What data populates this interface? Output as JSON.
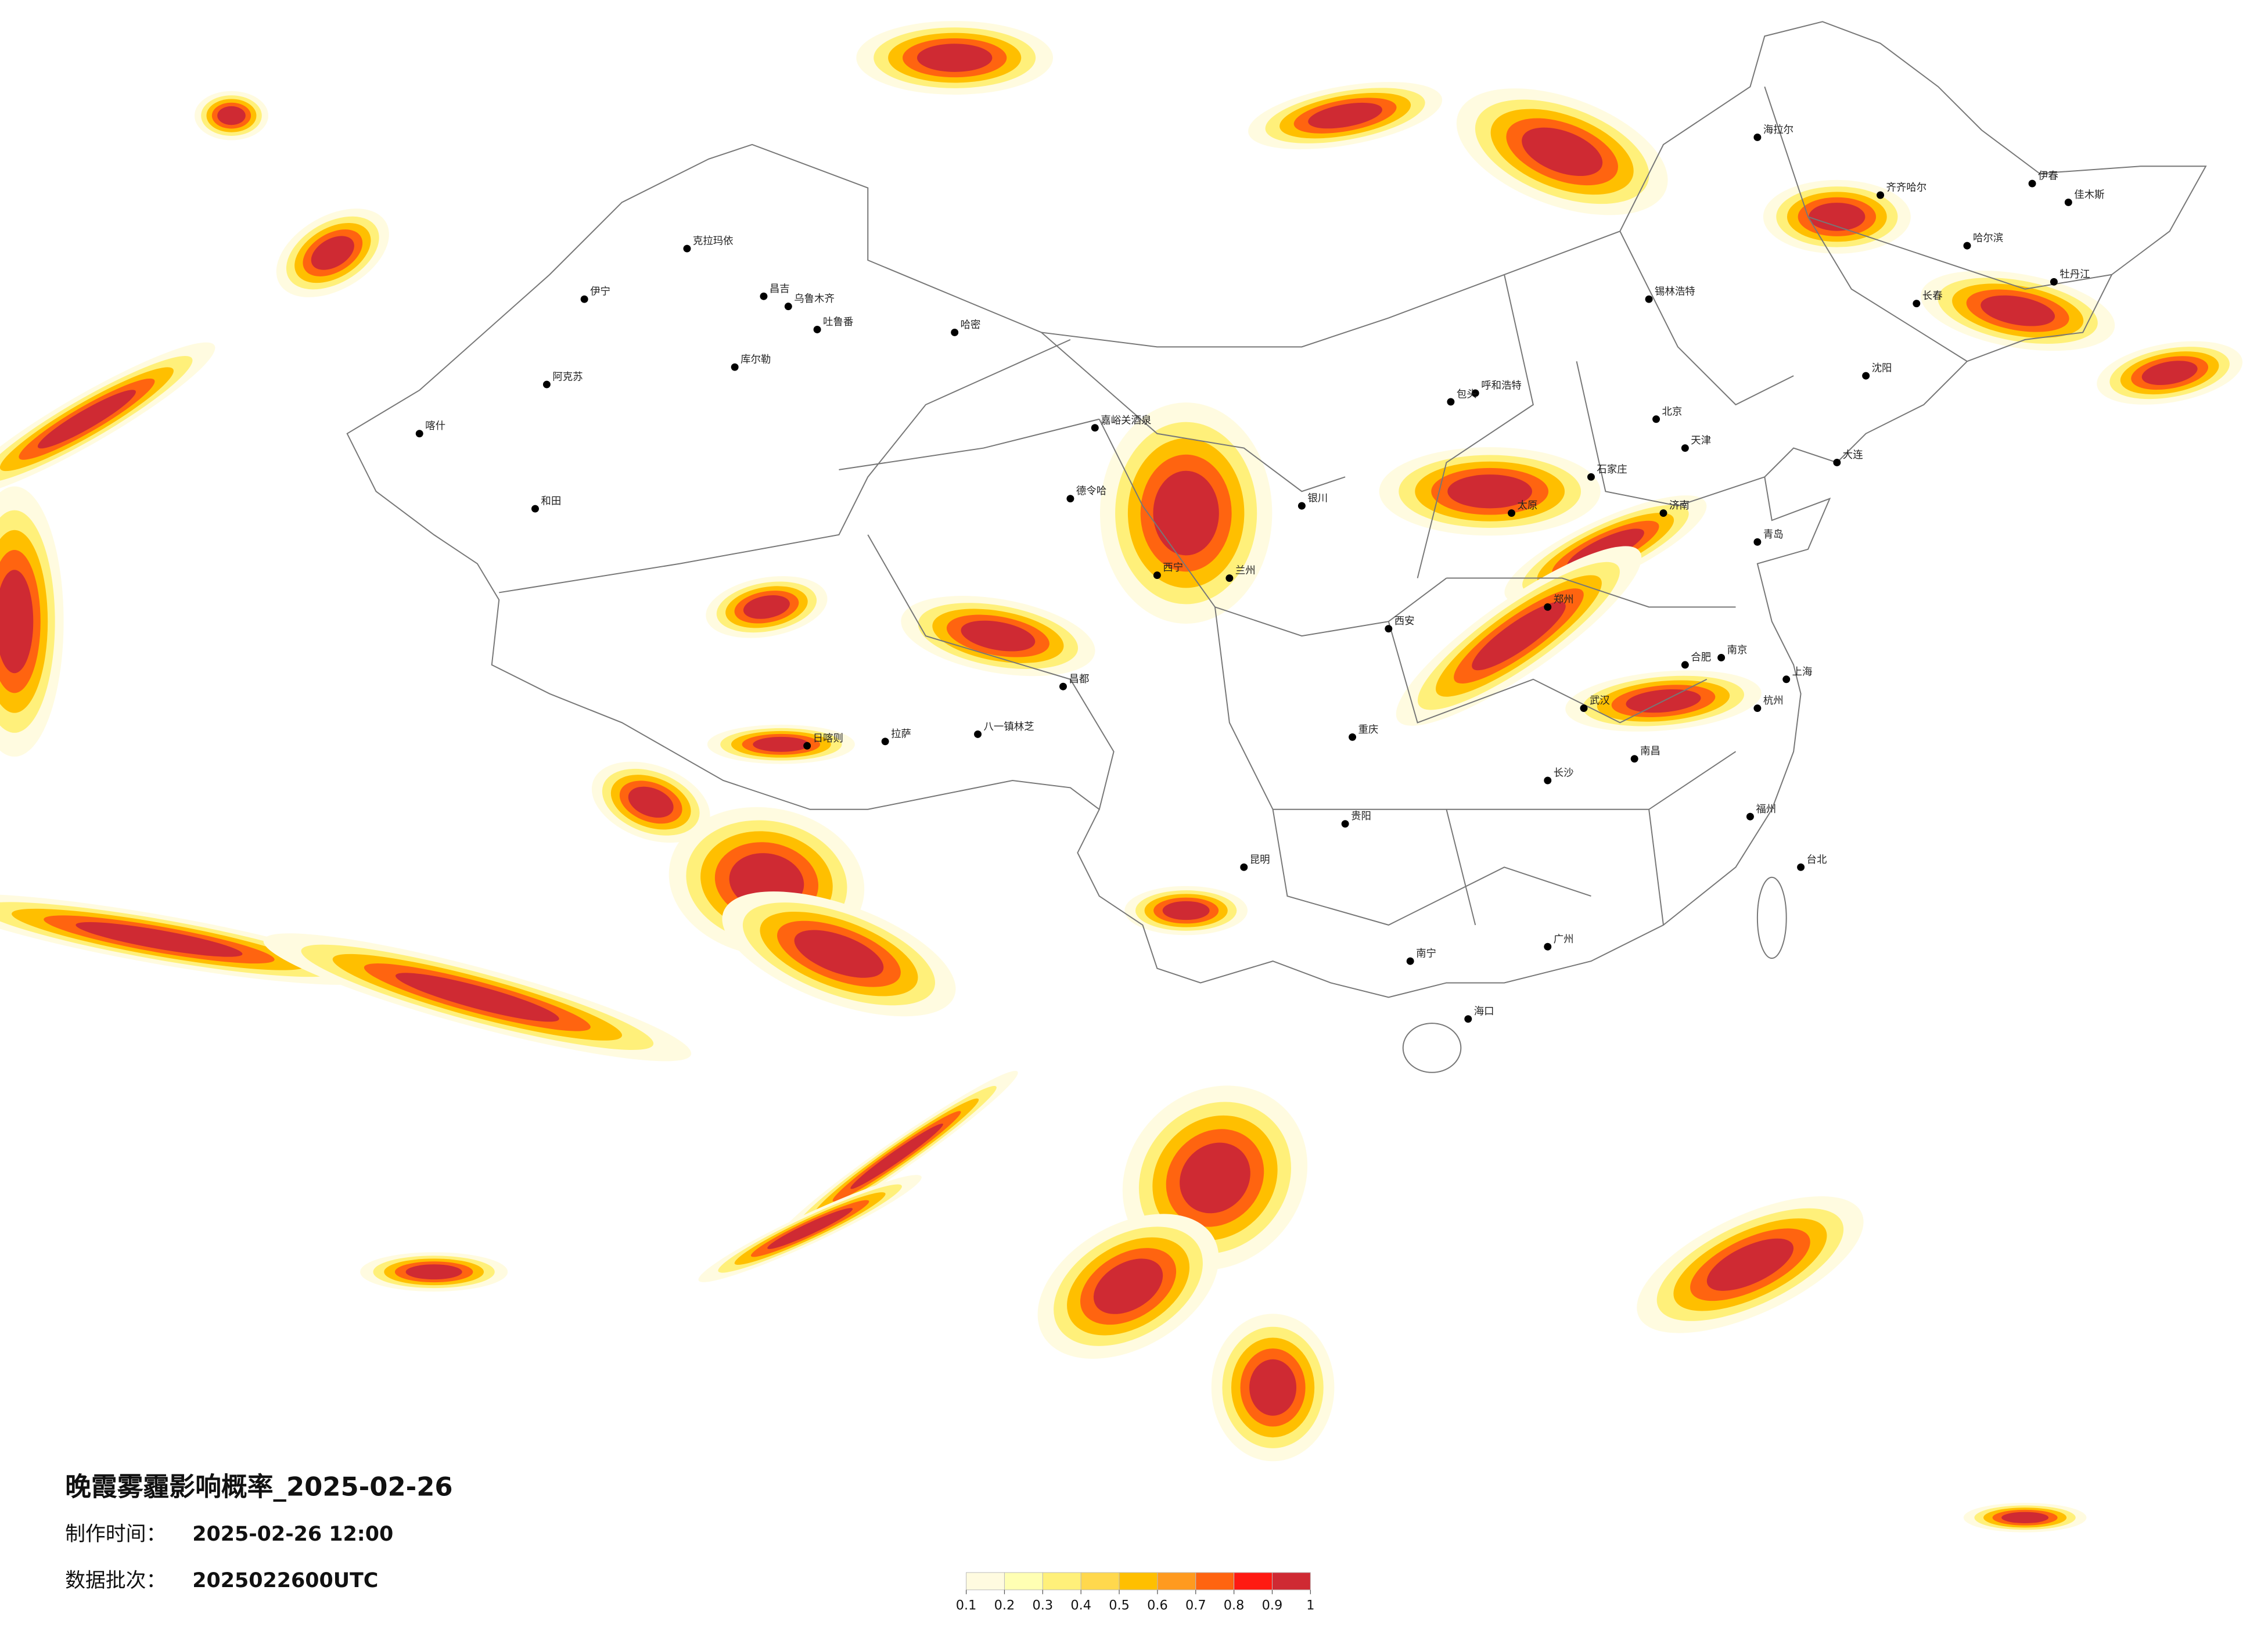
{
  "title": "晚霞雾霾影响概率_2025-02-26",
  "production_time_label": "制作时间：",
  "production_time": "2025-02-26 12:00",
  "batch_label": "数据批次：",
  "batch": "2025022600UTC",
  "legend": {
    "ticks": [
      0.1,
      0.2,
      0.3,
      0.4,
      0.5,
      0.6,
      0.7,
      0.8,
      0.9,
      1
    ],
    "colors": [
      "#fffbe0",
      "#ffffb3",
      "#fff07a",
      "#ffd84d",
      "#ffbf00",
      "#ff9a1f",
      "#ff6410",
      "#ff1a12",
      "#cf2a33"
    ]
  },
  "cities": [
    "克拉玛依",
    "昌吉",
    "乌鲁木齐",
    "吐鲁番",
    "哈密",
    "库尔勒",
    "伊宁",
    "阿克苏",
    "喀什",
    "和田",
    "嘉峪关酒泉",
    "德令哈",
    "拉萨",
    "日喀则",
    "八一镇林芝",
    "昌都",
    "北京",
    "天津",
    "石家庄",
    "太原",
    "呼和浩特",
    "包头",
    "济南",
    "郑州",
    "西安",
    "兰州",
    "西宁",
    "银川",
    "武汉",
    "长沙",
    "南昌",
    "合肥",
    "南京",
    "上海",
    "杭州",
    "福州",
    "广州",
    "南宁",
    "昆明",
    "贵阳",
    "重庆",
    "海口",
    "台北",
    "哈尔滨",
    "长春",
    "沈阳",
    "齐齐哈尔",
    "大连",
    "青岛",
    "伊春",
    "佳木斯",
    "牡丹江",
    "锡林浩特",
    "海拉尔"
  ]
}
